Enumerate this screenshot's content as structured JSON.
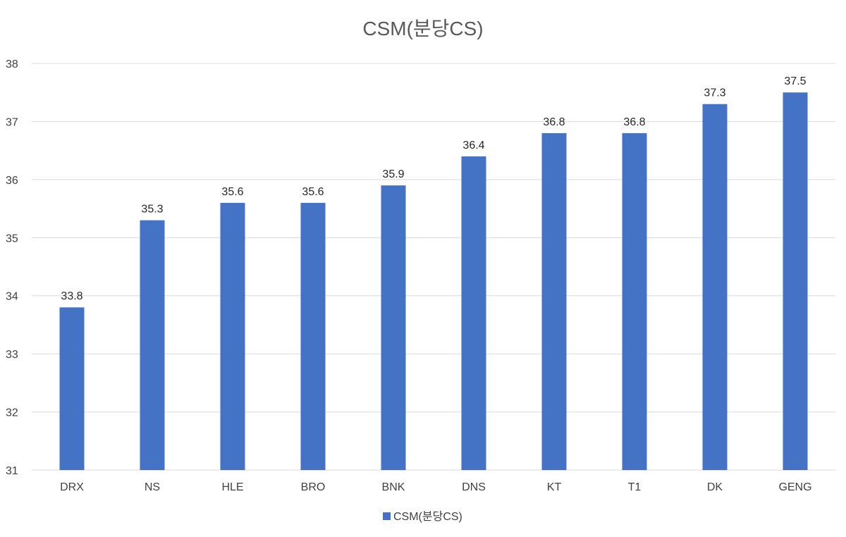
{
  "chart_data": {
    "type": "bar",
    "title": "CSM(분당CS)",
    "xlabel": "",
    "ylabel": "",
    "categories": [
      "DRX",
      "NS",
      "HLE",
      "BRO",
      "BNK",
      "DNS",
      "KT",
      "T1",
      "DK",
      "GENG"
    ],
    "series": [
      {
        "name": "CSM(분당CS)",
        "values": [
          33.8,
          35.3,
          35.6,
          35.6,
          35.9,
          36.4,
          36.8,
          36.8,
          37.3,
          37.5
        ]
      }
    ],
    "ylim": [
      31,
      38
    ],
    "yticks": [
      31,
      32,
      33,
      34,
      35,
      36,
      37,
      38
    ],
    "grid": true,
    "legend": "bottom",
    "bar_color": "#4472C4"
  }
}
